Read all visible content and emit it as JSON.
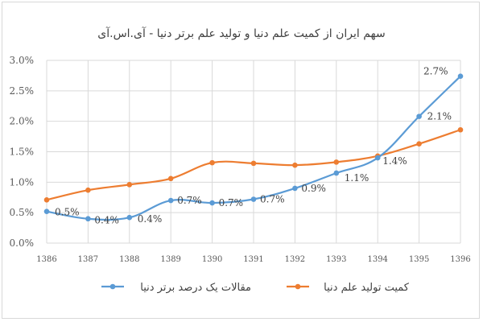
{
  "chart_data": {
    "type": "line",
    "title": "سهم ایران از کمیت علم دنیا و تولید علم برتر دنیا - آی.اس.آی",
    "categories": [
      "1386",
      "1387",
      "1388",
      "1389",
      "1390",
      "1391",
      "1392",
      "1393",
      "1394",
      "1395",
      "1396"
    ],
    "yticks": [
      "0.0%",
      "0.5%",
      "1.0%",
      "1.5%",
      "2.0%",
      "2.5%",
      "3.0%"
    ],
    "ylim": [
      0,
      3.0
    ],
    "grid": true,
    "legend_position": "bottom",
    "series": [
      {
        "name": "مقالات یک درصد برتر دنیا",
        "color": "#5b9bd5",
        "values": [
          0.52,
          0.4,
          0.42,
          0.7,
          0.66,
          0.72,
          0.9,
          1.15,
          1.4,
          2.08,
          2.74
        ],
        "labels": [
          "0.5%",
          "0.4%",
          "0.4%",
          "0.7%",
          "0.7%",
          "0.7%",
          "0.9%",
          "1.1%",
          "1.4%",
          "2.1%",
          "2.7%"
        ]
      },
      {
        "name": "کمیت تولید علم دنیا",
        "color": "#ed7d31",
        "values": [
          0.71,
          0.87,
          0.96,
          1.06,
          1.32,
          1.31,
          1.28,
          1.33,
          1.43,
          1.63,
          1.86
        ]
      }
    ]
  }
}
